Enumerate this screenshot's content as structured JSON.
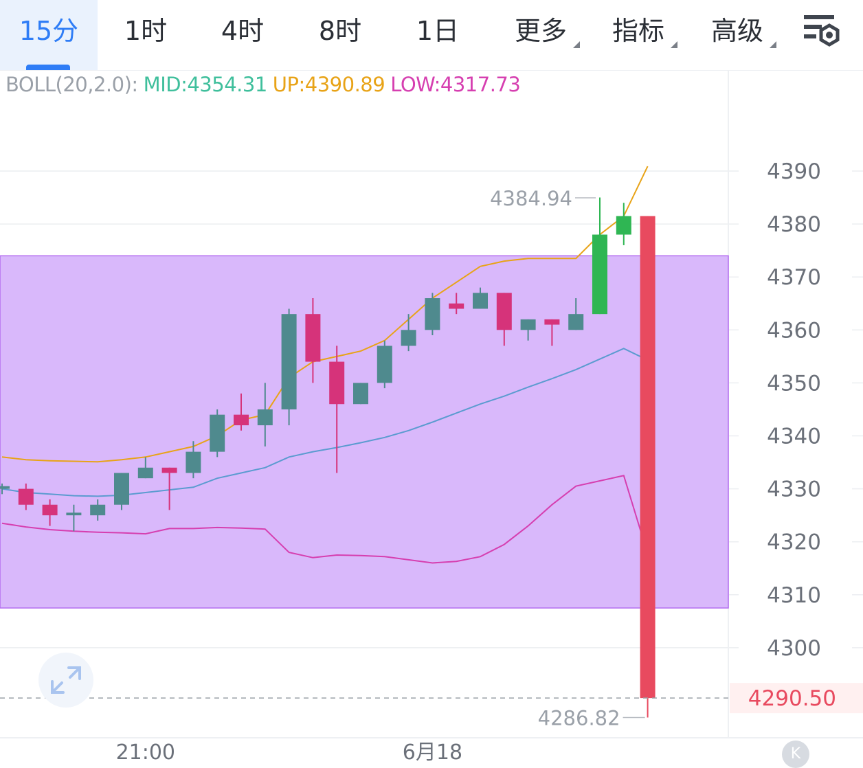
{
  "tabs": [
    {
      "label": "15分",
      "active": true
    },
    {
      "label": "1时",
      "active": false
    },
    {
      "label": "4时",
      "active": false
    },
    {
      "label": "8时",
      "active": false
    },
    {
      "label": "1日",
      "active": false
    },
    {
      "label": "更多",
      "dropdown": true
    },
    {
      "label": "指标",
      "dropdown": true
    },
    {
      "label": "高级",
      "dropdown": true
    }
  ],
  "settings_icon": "chart-settings-icon",
  "legend": {
    "name": "BOLL(20,2.0):",
    "mid": "MID:4354.31",
    "up": "UP:4390.89",
    "low": "LOW:4317.73"
  },
  "colors": {
    "accent": "#2f7df6",
    "up_candle": "#2fb653",
    "down_candle": "#d6337a",
    "mid": "#5b9bd0",
    "up": "#e8a317",
    "low": "#d63fb0",
    "zone": "#d9b8fb",
    "price_label": "#e84a5f"
  },
  "kbutton": "K",
  "chart_data": {
    "type": "candlestick",
    "x_labels": [
      {
        "index": 6,
        "label": "21:00"
      },
      {
        "index": 18,
        "label": "6月18"
      }
    ],
    "y_ticks": [
      4390,
      4380,
      4370,
      4360,
      4350,
      4340,
      4330,
      4320,
      4310,
      4300
    ],
    "ylim": [
      4280,
      4398
    ],
    "candles": [
      {
        "o": 4330,
        "h": 4331,
        "l": 4329,
        "c": 4330.5
      },
      {
        "o": 4330,
        "h": 4331,
        "l": 4326,
        "c": 4327
      },
      {
        "o": 4327,
        "h": 4328,
        "l": 4323,
        "c": 4325
      },
      {
        "o": 4325,
        "h": 4327,
        "l": 4322,
        "c": 4325.5
      },
      {
        "o": 4325,
        "h": 4328,
        "l": 4324,
        "c": 4327
      },
      {
        "o": 4327,
        "h": 4333,
        "l": 4326,
        "c": 4333
      },
      {
        "o": 4332,
        "h": 4336,
        "l": 4332,
        "c": 4334
      },
      {
        "o": 4334,
        "h": 4334,
        "l": 4326,
        "c": 4333
      },
      {
        "o": 4333,
        "h": 4339,
        "l": 4332,
        "c": 4337
      },
      {
        "o": 4337,
        "h": 4345,
        "l": 4336,
        "c": 4344
      },
      {
        "o": 4344,
        "h": 4348,
        "l": 4341,
        "c": 4342
      },
      {
        "o": 4342,
        "h": 4350,
        "l": 4338,
        "c": 4345
      },
      {
        "o": 4345,
        "h": 4364,
        "l": 4342,
        "c": 4363
      },
      {
        "o": 4363,
        "h": 4366,
        "l": 4350,
        "c": 4354
      },
      {
        "o": 4354,
        "h": 4357,
        "l": 4333,
        "c": 4346
      },
      {
        "o": 4346,
        "h": 4350,
        "l": 4346,
        "c": 4350
      },
      {
        "o": 4350,
        "h": 4358,
        "l": 4349,
        "c": 4357
      },
      {
        "o": 4357,
        "h": 4363,
        "l": 4356,
        "c": 4360
      },
      {
        "o": 4360,
        "h": 4367,
        "l": 4359,
        "c": 4366
      },
      {
        "o": 4365,
        "h": 4367,
        "l": 4363,
        "c": 4364
      },
      {
        "o": 4364,
        "h": 4368,
        "l": 4364,
        "c": 4367
      },
      {
        "o": 4367,
        "h": 4367,
        "l": 4357,
        "c": 4360
      },
      {
        "o": 4360,
        "h": 4362,
        "l": 4358,
        "c": 4362
      },
      {
        "o": 4362,
        "h": 4362,
        "l": 4357,
        "c": 4361
      },
      {
        "o": 4360,
        "h": 4366,
        "l": 4360,
        "c": 4363
      },
      {
        "o": 4363,
        "h": 4385,
        "l": 4363,
        "c": 4378
      },
      {
        "o": 4378,
        "h": 4384,
        "l": 4376,
        "c": 4381.5
      },
      {
        "o": 4381.5,
        "h": 4381.5,
        "l": 4286.82,
        "c": 4290.5
      }
    ],
    "boll": {
      "up": [
        4336,
        4335.5,
        4335.3,
        4335.2,
        4335.1,
        4335.5,
        4336,
        4337,
        4338,
        4340,
        4343,
        4344,
        4351,
        4354,
        4355,
        4356,
        4358,
        4362,
        4366,
        4369,
        4372,
        4373,
        4373.5,
        4373.5,
        4373.5,
        4378,
        4381.5,
        4390.89
      ],
      "mid": [
        4330,
        4329.3,
        4329,
        4328.7,
        4328.6,
        4328.8,
        4329.3,
        4329.8,
        4330.3,
        4332,
        4333,
        4334,
        4336,
        4337,
        4337.8,
        4338.7,
        4339.7,
        4341,
        4342.6,
        4344.3,
        4346,
        4347.5,
        4349.2,
        4350.8,
        4352.5,
        4354.5,
        4356.5,
        4354.31
      ],
      "low": [
        4323.5,
        4322.8,
        4322.3,
        4322,
        4321.8,
        4321.7,
        4321.5,
        4322.5,
        4322.5,
        4322.7,
        4322.6,
        4322.4,
        4318,
        4317,
        4317.5,
        4317.4,
        4317.2,
        4316.6,
        4316,
        4316.3,
        4317.2,
        4319.5,
        4323,
        4327,
        4330.5,
        4331.5,
        4332.5,
        4317.73
      ]
    },
    "zone": {
      "top": 4374,
      "bottom": 4307.5
    },
    "high_marker": {
      "index": 25,
      "value": 4384.94,
      "label": "4384.94"
    },
    "low_marker": {
      "index": 27,
      "value": 4286.82,
      "label": "4286.82"
    },
    "last_price": {
      "value": 4290.5,
      "label": "4290.50"
    }
  }
}
